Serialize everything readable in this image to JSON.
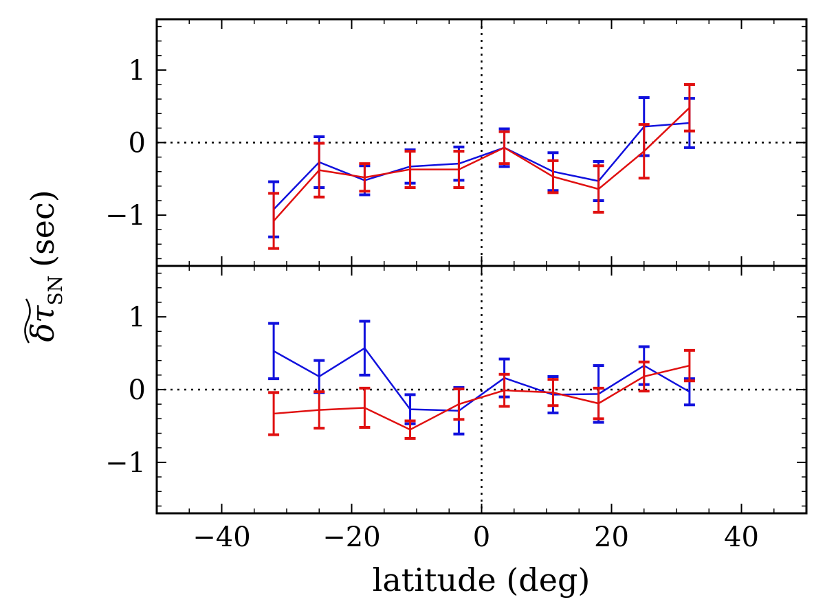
{
  "chart_data": [
    {
      "type": "line",
      "panel": "top",
      "xlim": [
        -50,
        50
      ],
      "ylim": [
        -1.7,
        1.7
      ],
      "xticks": [
        -40,
        -20,
        0,
        20,
        40
      ],
      "yticks": [
        -1,
        0,
        1
      ],
      "ytick_labels": [
        "−1",
        "0",
        "1"
      ],
      "reference_lines": {
        "x": 0,
        "y": 0,
        "style": "dotted"
      },
      "series": [
        {
          "name": "blue",
          "color": "#1111dd",
          "x": [
            -32,
            -25,
            -18,
            -11,
            -3.5,
            3.5,
            11,
            18,
            25,
            32
          ],
          "y": [
            -0.92,
            -0.27,
            -0.52,
            -0.33,
            -0.29,
            -0.07,
            -0.4,
            -0.53,
            0.22,
            0.27
          ],
          "err": [
            0.38,
            0.35,
            0.2,
            0.23,
            0.23,
            0.26,
            0.26,
            0.27,
            0.4,
            0.34
          ]
        },
        {
          "name": "red",
          "color": "#e01010",
          "x": [
            -32,
            -25,
            -18,
            -11,
            -3.5,
            3.5,
            11,
            18,
            25,
            32
          ],
          "y": [
            -1.08,
            -0.38,
            -0.48,
            -0.37,
            -0.37,
            -0.07,
            -0.47,
            -0.64,
            -0.12,
            0.48
          ],
          "err": [
            0.38,
            0.37,
            0.19,
            0.25,
            0.25,
            0.22,
            0.22,
            0.32,
            0.37,
            0.32
          ]
        }
      ]
    },
    {
      "type": "line",
      "panel": "bottom",
      "xlim": [
        -50,
        50
      ],
      "ylim": [
        -1.7,
        1.7
      ],
      "xticks": [
        -40,
        -20,
        0,
        20,
        40
      ],
      "yticks": [
        -1,
        0,
        1
      ],
      "ytick_labels": [
        "−1",
        "0",
        "1"
      ],
      "reference_lines": {
        "x": 0,
        "y": 0,
        "style": "dotted"
      },
      "series": [
        {
          "name": "blue",
          "color": "#1111dd",
          "x": [
            -32,
            -25,
            -18,
            -11,
            -3.5,
            3.5,
            11,
            18,
            25,
            32
          ],
          "y": [
            0.53,
            0.18,
            0.57,
            -0.27,
            -0.29,
            0.16,
            -0.07,
            -0.06,
            0.33,
            -0.03
          ],
          "err": [
            0.38,
            0.22,
            0.37,
            0.2,
            0.32,
            0.26,
            0.25,
            0.39,
            0.26,
            0.18
          ]
        },
        {
          "name": "red",
          "color": "#e01010",
          "x": [
            -32,
            -25,
            -18,
            -11,
            -3.5,
            3.5,
            11,
            18,
            25,
            32
          ],
          "y": [
            -0.33,
            -0.28,
            -0.25,
            -0.55,
            -0.2,
            -0.01,
            -0.04,
            -0.19,
            0.18,
            0.33
          ],
          "err": [
            0.29,
            0.25,
            0.27,
            0.12,
            0.21,
            0.22,
            0.18,
            0.21,
            0.2,
            0.21
          ]
        }
      ]
    }
  ],
  "axes": {
    "xlabel": "latitude (deg)",
    "xtick_labels": [
      "−40",
      "−20",
      "0",
      "20",
      "40"
    ],
    "ylabel_symbol": "δτ",
    "ylabel_subscript": "SN",
    "ylabel_unit": "(sec)"
  }
}
